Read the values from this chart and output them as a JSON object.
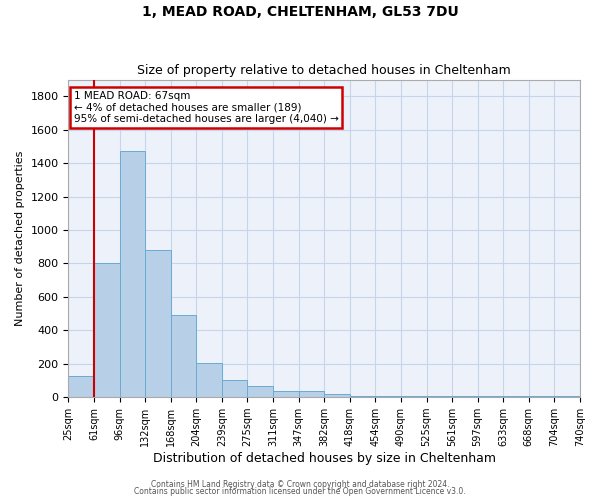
{
  "title1": "1, MEAD ROAD, CHELTENHAM, GL53 7DU",
  "title2": "Size of property relative to detached houses in Cheltenham",
  "xlabel": "Distribution of detached houses by size in Cheltenham",
  "ylabel": "Number of detached properties",
  "footer1": "Contains HM Land Registry data © Crown copyright and database right 2024.",
  "footer2": "Contains public sector information licensed under the Open Government Licence v3.0.",
  "annotation_title": "1 MEAD ROAD: 67sqm",
  "annotation_line1": "← 4% of detached houses are smaller (189)",
  "annotation_line2": "95% of semi-detached houses are larger (4,040) →",
  "bar_values": [
    125,
    805,
    1470,
    880,
    490,
    205,
    105,
    65,
    40,
    35,
    20,
    10,
    10,
    10,
    10,
    5,
    5,
    5,
    5,
    5
  ],
  "categories": [
    "25sqm",
    "61sqm",
    "96sqm",
    "132sqm",
    "168sqm",
    "204sqm",
    "239sqm",
    "275sqm",
    "311sqm",
    "347sqm",
    "382sqm",
    "418sqm",
    "454sqm",
    "490sqm",
    "525sqm",
    "561sqm",
    "597sqm",
    "633sqm",
    "668sqm",
    "704sqm",
    "740sqm"
  ],
  "bar_color": "#b8cfe8",
  "bar_edge_color": "#6aaad4",
  "grid_color": "#c8d4e8",
  "bg_color": "#edf2fa",
  "vline_color": "#cc0000",
  "vline_x": 0.5,
  "annotation_box_color": "#cc0000",
  "ylim": [
    0,
    1900
  ],
  "yticks": [
    0,
    200,
    400,
    600,
    800,
    1000,
    1200,
    1400,
    1600,
    1800
  ],
  "title1_fontsize": 10,
  "title2_fontsize": 9,
  "ylabel_fontsize": 8,
  "xlabel_fontsize": 9,
  "ytick_fontsize": 8,
  "xtick_fontsize": 7,
  "annotation_fontsize": 7.5,
  "footer_fontsize": 5.5
}
